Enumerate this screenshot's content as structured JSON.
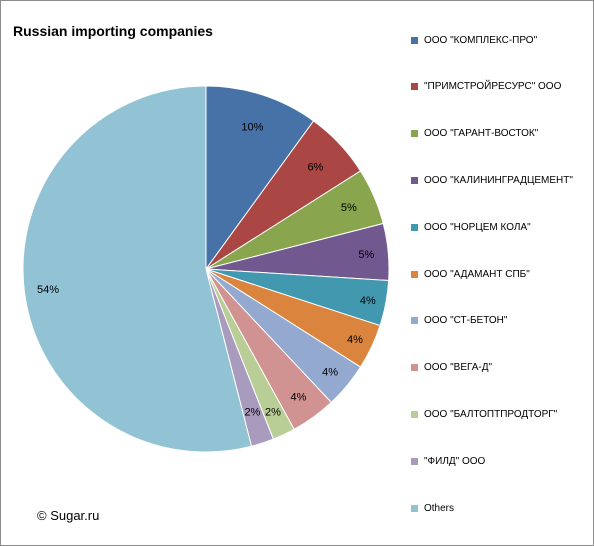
{
  "chart_data": {
    "type": "pie",
    "title": "Russian importing companies",
    "categories": [
      "ООО \"КОМПЛЕКС-ПРО\"",
      "\"ПРИМСТРОЙРЕСУРС\" ООО",
      "ООО \"ГАРАНТ-ВОСТОК\"",
      "ООО \"КАЛИНИНГРАДЦЕМЕНТ\"",
      "ООО \"НОРЦЕМ КОЛА\"",
      "ООО \"АДАМАНТ СПБ\"",
      "ООО \"СТ-БЕТОН\"",
      "ООО \"ВЕГА-Д\"",
      "ООО \"БАЛТОПТПРОДТОРГ\"",
      "\"ФИЛД\" ООО",
      "Others"
    ],
    "values": [
      10,
      6,
      5,
      5,
      4,
      4,
      4,
      4,
      2,
      2,
      54
    ],
    "data_labels": [
      "10%",
      "6%",
      "5%",
      "5%",
      "4%",
      "4%",
      "4%",
      "4%",
      "2%",
      "2%",
      "54%"
    ],
    "colors": [
      "#4672A8",
      "#AA4643",
      "#89A54E",
      "#71588F",
      "#4198AF",
      "#DB843D",
      "#93A9CF",
      "#D19392",
      "#B9CD96",
      "#A99BBD",
      "#92C3D4"
    ],
    "legend_position": "right"
  },
  "source": "© Sugar.ru"
}
